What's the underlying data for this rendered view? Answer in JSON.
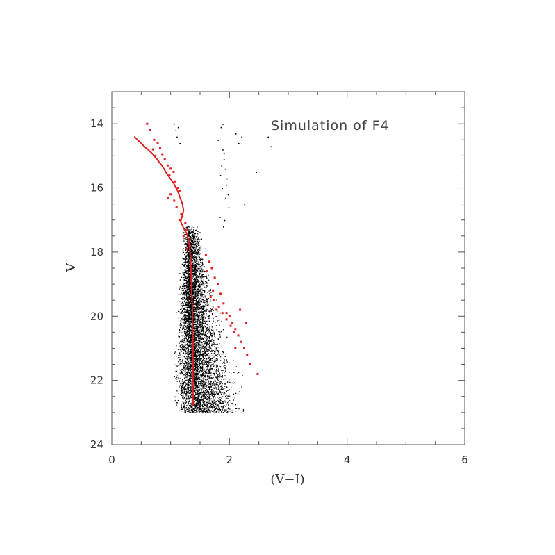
{
  "chart_data": {
    "type": "scatter",
    "title": "Simulation of F4",
    "xlabel": "(V−I)",
    "ylabel": "V",
    "xlim": [
      0,
      6
    ],
    "ylim": [
      24,
      13
    ],
    "y_inverted": true,
    "grid": false,
    "x_ticks": [
      "0",
      "2",
      "4",
      "6"
    ],
    "y_ticks": [
      "14",
      "16",
      "18",
      "20",
      "22",
      "24"
    ],
    "colors": {
      "observed": "#000000",
      "simulated": "#e02020",
      "axes": "#555555"
    },
    "series": [
      {
        "kind": "ridge-line",
        "color": "#e02020",
        "x": [
          0.38,
          0.55,
          0.7,
          0.85,
          0.95,
          1.05,
          1.12,
          1.17,
          1.2,
          1.22,
          1.2,
          1.17,
          1.22,
          1.28,
          1.32,
          1.34,
          1.35,
          1.36,
          1.37,
          1.37,
          1.38,
          1.38,
          1.38,
          1.38
        ],
        "y": [
          14.4,
          14.7,
          14.95,
          15.3,
          15.6,
          15.85,
          16.1,
          16.35,
          16.5,
          16.7,
          16.85,
          17.05,
          17.25,
          17.45,
          17.8,
          18.3,
          18.8,
          19.3,
          19.8,
          20.3,
          20.8,
          21.3,
          22.0,
          22.8
        ]
      },
      {
        "kind": "points",
        "color": "#e02020",
        "x": [
          0.6,
          0.65,
          0.72,
          0.78,
          0.82,
          0.86,
          0.7,
          0.74,
          0.9,
          0.95,
          1.0,
          0.98,
          1.05,
          1.08,
          1.12,
          1.15,
          1.0,
          1.06,
          1.1,
          0.96,
          1.18,
          1.2,
          1.25,
          1.28,
          1.15,
          1.22,
          1.3,
          1.33,
          1.28,
          1.6,
          1.65,
          1.7,
          1.75,
          1.8,
          1.72,
          1.85,
          1.9,
          1.95,
          2.0,
          2.05,
          1.78,
          2.1,
          2.15,
          2.08,
          2.2,
          2.25,
          2.1,
          2.3,
          2.35,
          2.48,
          1.62,
          1.68,
          1.74,
          1.82,
          1.88,
          1.95,
          2.02,
          2.18,
          2.28
        ],
        "y": [
          14.0,
          14.2,
          14.5,
          14.6,
          14.75,
          14.95,
          14.8,
          15.0,
          15.1,
          15.3,
          15.4,
          15.6,
          15.5,
          15.8,
          16.0,
          16.1,
          16.2,
          16.4,
          16.6,
          16.3,
          16.8,
          16.9,
          17.1,
          17.3,
          17.0,
          17.5,
          17.6,
          17.8,
          17.9,
          18.1,
          18.3,
          18.5,
          18.8,
          19.0,
          19.2,
          19.3,
          19.6,
          19.9,
          20.0,
          20.2,
          19.8,
          20.4,
          20.6,
          20.5,
          20.8,
          21.0,
          21.0,
          21.2,
          21.5,
          21.8,
          18.6,
          19.4,
          19.5,
          19.7,
          19.9,
          20.1,
          20.3,
          19.8,
          20.2
        ]
      },
      {
        "kind": "density-cloud",
        "color": "#000000",
        "description_points": "main sequence ridge",
        "ridge_x": [
          1.32,
          1.33,
          1.35,
          1.38,
          1.42,
          1.45,
          1.48,
          1.52
        ],
        "ridge_y": [
          17.2,
          18.0,
          19.0,
          20.0,
          21.0,
          21.8,
          22.4,
          23.0
        ],
        "spread": [
          0.08,
          0.1,
          0.14,
          0.18,
          0.24,
          0.28,
          0.32,
          0.36
        ],
        "count": 6000
      },
      {
        "kind": "points",
        "color": "#000000",
        "x": [
          1.05,
          1.08,
          1.12,
          1.1,
          1.15,
          1.85,
          1.8,
          1.88,
          1.9,
          1.92,
          1.95,
          1.87,
          1.93,
          1.98,
          2.1,
          2.15,
          2.2,
          2.65,
          2.7,
          2.45,
          2.25,
          1.83,
          1.89,
          1.91,
          1.86,
          1.94,
          1.97,
          1.84,
          1.9,
          1.88
        ],
        "y": [
          14.0,
          14.2,
          14.1,
          14.4,
          14.6,
          14.1,
          14.5,
          14.8,
          15.1,
          15.4,
          15.7,
          16.0,
          16.3,
          16.6,
          14.3,
          14.6,
          14.4,
          14.4,
          14.7,
          15.5,
          16.5,
          16.9,
          17.2,
          17.0,
          15.3,
          15.9,
          16.2,
          15.6,
          14.9,
          14.0
        ]
      }
    ]
  }
}
